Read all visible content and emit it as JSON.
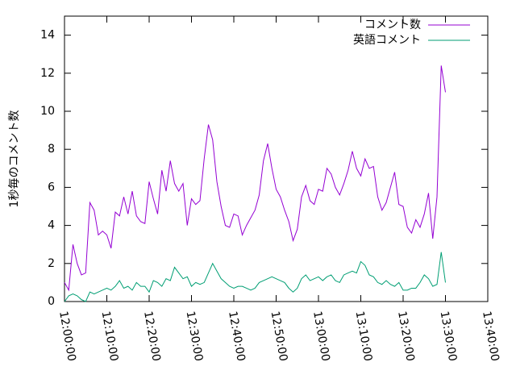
{
  "chart_data": {
    "type": "line",
    "y_label": "1秒毎のコメント数",
    "x": [
      "12:00:00",
      "12:01:00",
      "12:02:00",
      "12:03:00",
      "12:04:00",
      "12:05:00",
      "12:06:00",
      "12:07:00",
      "12:08:00",
      "12:09:00",
      "12:10:00",
      "12:11:00",
      "12:12:00",
      "12:13:00",
      "12:14:00",
      "12:15:00",
      "12:16:00",
      "12:17:00",
      "12:18:00",
      "12:19:00",
      "12:20:00",
      "12:21:00",
      "12:22:00",
      "12:23:00",
      "12:24:00",
      "12:25:00",
      "12:26:00",
      "12:27:00",
      "12:28:00",
      "12:29:00",
      "12:30:00",
      "12:31:00",
      "12:32:00",
      "12:33:00",
      "12:34:00",
      "12:35:00",
      "12:36:00",
      "12:37:00",
      "12:38:00",
      "12:39:00",
      "12:40:00",
      "12:41:00",
      "12:42:00",
      "12:43:00",
      "12:44:00",
      "12:45:00",
      "12:46:00",
      "12:47:00",
      "12:48:00",
      "12:49:00",
      "12:50:00",
      "12:51:00",
      "12:52:00",
      "12:53:00",
      "12:54:00",
      "12:55:00",
      "12:56:00",
      "12:57:00",
      "12:58:00",
      "12:59:00",
      "13:00:00",
      "13:01:00",
      "13:02:00",
      "13:03:00",
      "13:04:00",
      "13:05:00",
      "13:06:00",
      "13:07:00",
      "13:08:00",
      "13:09:00",
      "13:10:00",
      "13:11:00",
      "13:12:00",
      "13:13:00",
      "13:14:00",
      "13:15:00",
      "13:16:00",
      "13:17:00",
      "13:18:00",
      "13:19:00",
      "13:20:00",
      "13:21:00",
      "13:22:00",
      "13:23:00",
      "13:24:00",
      "13:25:00",
      "13:26:00",
      "13:27:00",
      "13:28:00",
      "13:29:00",
      "13:30:00"
    ],
    "series": [
      {
        "name": "コメント数",
        "color": "#9400d3",
        "values": [
          1.0,
          0.6,
          3.0,
          2.0,
          1.4,
          1.5,
          5.2,
          4.8,
          3.5,
          3.7,
          3.5,
          2.8,
          4.7,
          4.5,
          5.5,
          4.6,
          5.8,
          4.5,
          4.2,
          4.1,
          6.3,
          5.4,
          4.6,
          6.9,
          5.8,
          7.4,
          6.2,
          5.8,
          6.2,
          4.0,
          5.4,
          5.1,
          5.3,
          7.5,
          9.3,
          8.5,
          6.3,
          5.0,
          4.0,
          3.9,
          4.6,
          4.5,
          3.5,
          4.0,
          4.4,
          4.8,
          5.6,
          7.4,
          8.3,
          7.0,
          5.9,
          5.5,
          4.8,
          4.2,
          3.2,
          3.8,
          5.5,
          6.1,
          5.3,
          5.1,
          5.9,
          5.8,
          7.0,
          6.7,
          6.0,
          5.6,
          6.2,
          6.9,
          7.9,
          7.0,
          6.6,
          7.5,
          7.0,
          7.1,
          5.5,
          4.8,
          5.2,
          6.0,
          6.8,
          5.1,
          5.0,
          3.9,
          3.6,
          4.3,
          3.9,
          4.6,
          5.7,
          3.3,
          5.5,
          12.4,
          11.0
        ]
      },
      {
        "name": "英語コメント",
        "color": "#009e73",
        "values": [
          0.0,
          0.3,
          0.4,
          0.3,
          0.1,
          0.0,
          0.5,
          0.4,
          0.5,
          0.6,
          0.7,
          0.6,
          0.8,
          1.1,
          0.7,
          0.8,
          0.6,
          1.0,
          0.8,
          0.8,
          0.5,
          1.1,
          1.0,
          0.8,
          1.2,
          1.1,
          1.8,
          1.5,
          1.2,
          1.3,
          0.8,
          1.0,
          0.9,
          1.0,
          1.5,
          2.0,
          1.6,
          1.2,
          1.0,
          0.8,
          0.7,
          0.8,
          0.8,
          0.7,
          0.6,
          0.7,
          1.0,
          1.1,
          1.2,
          1.3,
          1.2,
          1.1,
          1.0,
          0.7,
          0.5,
          0.7,
          1.2,
          1.4,
          1.1,
          1.2,
          1.3,
          1.1,
          1.3,
          1.4,
          1.1,
          1.0,
          1.4,
          1.5,
          1.6,
          1.5,
          2.1,
          1.9,
          1.4,
          1.3,
          1.0,
          0.9,
          1.1,
          0.9,
          0.8,
          1.0,
          0.6,
          0.6,
          0.7,
          0.7,
          1.0,
          1.4,
          1.2,
          0.8,
          0.9,
          2.6,
          1.0
        ]
      }
    ],
    "xlim": [
      "12:00:00",
      "13:40:00"
    ],
    "xticks": [
      "12:00:00",
      "12:10:00",
      "12:20:00",
      "12:30:00",
      "12:40:00",
      "12:50:00",
      "13:00:00",
      "13:10:00",
      "13:20:00",
      "13:30:00",
      "13:40:00"
    ],
    "ylim": [
      0,
      15
    ],
    "yticks": [
      0,
      2,
      4,
      6,
      8,
      10,
      12,
      14
    ],
    "legend": "top-right"
  }
}
